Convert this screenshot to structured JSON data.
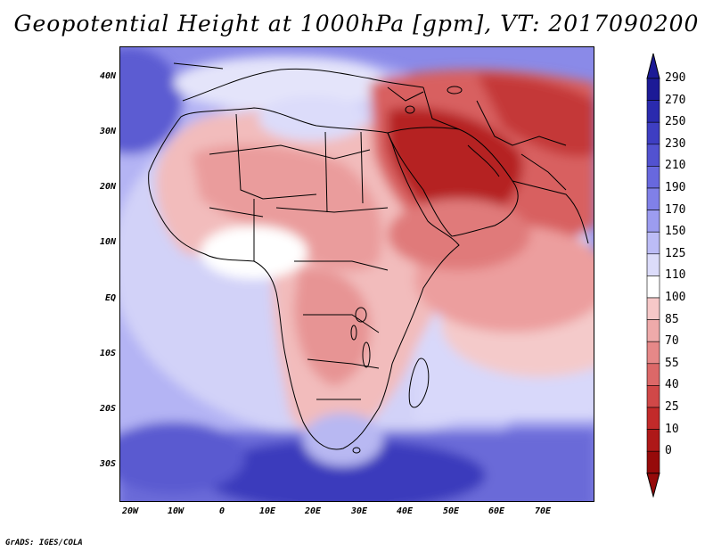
{
  "title": "Geopotential Height at 1000hPa [gpm], VT: 2017090200",
  "credit": "GrADS: IGES/COLA",
  "map": {
    "region": "Africa and Middle East",
    "lat_labels": [
      "40N",
      "30N",
      "20N",
      "10N",
      "EQ",
      "10S",
      "20S",
      "30S"
    ],
    "lon_labels": [
      "20W",
      "10W",
      "0",
      "10E",
      "20E",
      "30E",
      "40E",
      "50E",
      "60E",
      "70E"
    ]
  },
  "colorbar": {
    "labels": [
      "290",
      "270",
      "250",
      "230",
      "210",
      "190",
      "170",
      "150",
      "125",
      "110",
      "100",
      "85",
      "70",
      "55",
      "40",
      "25",
      "10",
      "0"
    ],
    "colors": [
      "#1c1a96",
      "#2a2aae",
      "#3e3ec2",
      "#5252d0",
      "#6868de",
      "#8080e8",
      "#9c9cf0",
      "#bcbcf6",
      "#dcdcfa",
      "#ffffff",
      "#f6c8c8",
      "#eeaaaa",
      "#e68888",
      "#dc6868",
      "#d04848",
      "#c22a2a",
      "#ae1818",
      "#960a0a"
    ]
  }
}
